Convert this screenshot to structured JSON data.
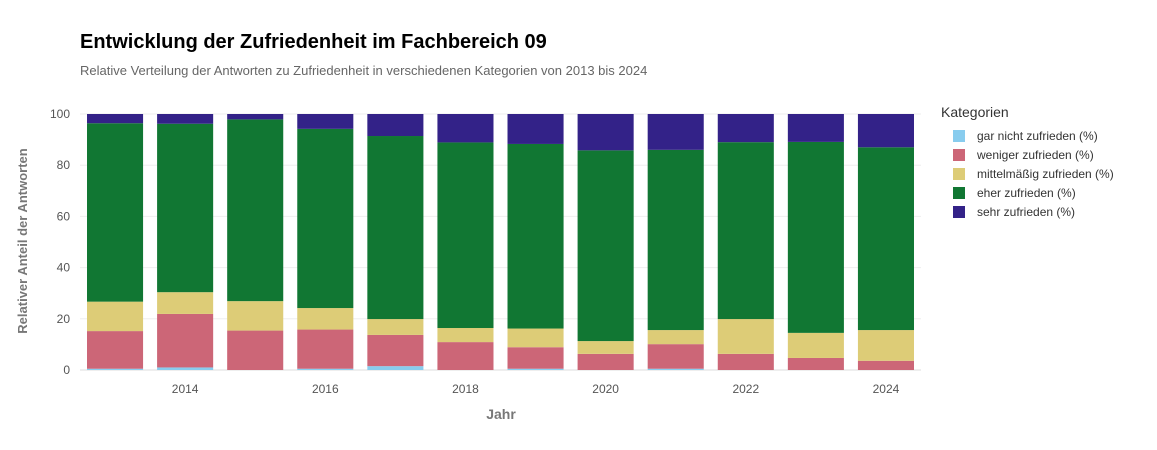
{
  "title": "Entwicklung der Zufriedenheit im Fachbereich 09",
  "subtitle": "Relative Verteilung der Antworten zu Zufriedenheit in verschiedenen Kategorien von 2013 bis 2024",
  "chart_data": {
    "type": "bar",
    "stacked": true,
    "xlabel": "Jahr",
    "ylabel": "Relativer Anteil der Antworten",
    "ylim": [
      0,
      100
    ],
    "yticks": [
      0,
      20,
      40,
      60,
      80,
      100
    ],
    "xticks": [
      2014,
      2016,
      2018,
      2020,
      2022,
      2024
    ],
    "categories": [
      2013,
      2014,
      2015,
      2016,
      2017,
      2018,
      2019,
      2020,
      2021,
      2022,
      2023,
      2024
    ],
    "legend_title": "Kategorien",
    "legend_position": "right",
    "grid": true,
    "series": [
      {
        "name": "gar nicht zufrieden (%)",
        "color": "#88CCEE",
        "values": [
          0.5,
          1,
          0,
          0.5,
          1.5,
          0,
          0.5,
          0,
          0.5,
          0,
          0,
          0
        ]
      },
      {
        "name": "weniger zufrieden (%)",
        "color": "#CC6677",
        "values": [
          14.7,
          20.9,
          15.4,
          15.3,
          12.2,
          10.9,
          8.4,
          6.3,
          9.6,
          6.3,
          4.7,
          3.6
        ]
      },
      {
        "name": "mittelmäßig zufrieden (%)",
        "color": "#DDCC77",
        "values": [
          11.5,
          8.5,
          11.5,
          8.4,
          6.2,
          5.5,
          7.3,
          5,
          5.5,
          13.6,
          9.8,
          12
        ]
      },
      {
        "name": "eher zufrieden (%)",
        "color": "#117733",
        "values": [
          69.7,
          65.8,
          71,
          70,
          71.5,
          72.5,
          72.1,
          74.5,
          70.4,
          69.1,
          74.6,
          71.4
        ]
      },
      {
        "name": "sehr zufrieden (%)",
        "color": "#332288",
        "values": [
          3.6,
          3.8,
          2.1,
          5.8,
          8.6,
          11.1,
          11.7,
          14.2,
          14,
          11,
          10.9,
          13
        ]
      }
    ]
  }
}
